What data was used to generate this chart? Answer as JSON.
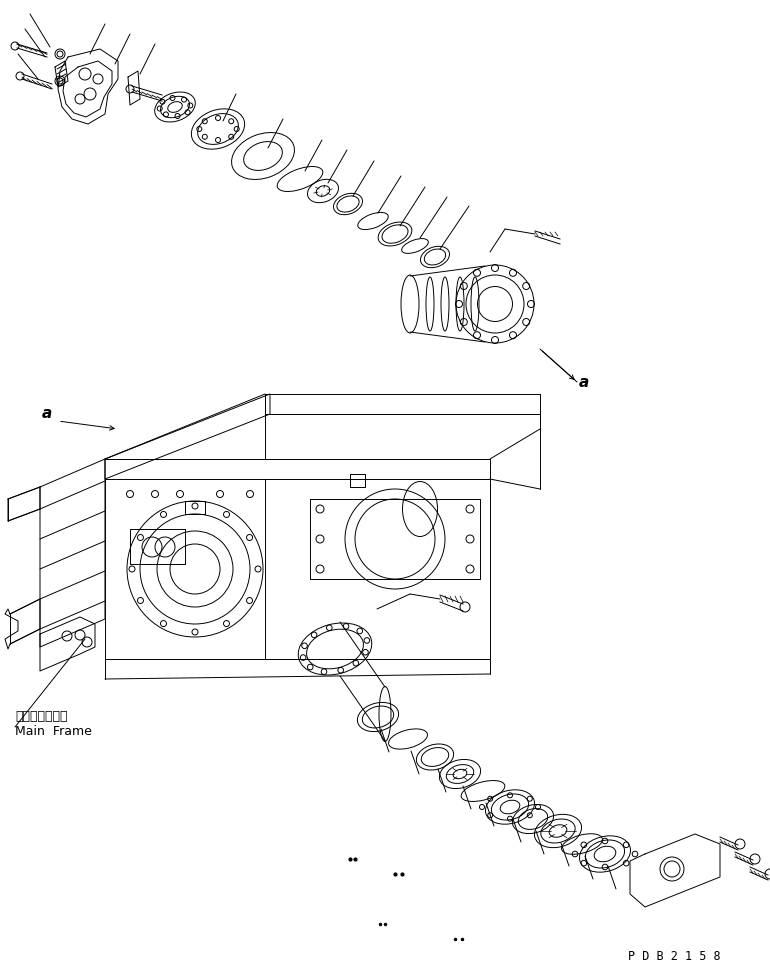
{
  "bg_color": "#ffffff",
  "line_color": "#000000",
  "fig_width": 7.7,
  "fig_height": 9.79,
  "dpi": 100,
  "lw": 0.7,
  "label_a_left": "a",
  "label_a_right": "a",
  "label_main_frame_jp": "メインフレーム",
  "label_main_frame_en": "Main  Frame",
  "label_pdb": "P D B 2 1 5 8"
}
